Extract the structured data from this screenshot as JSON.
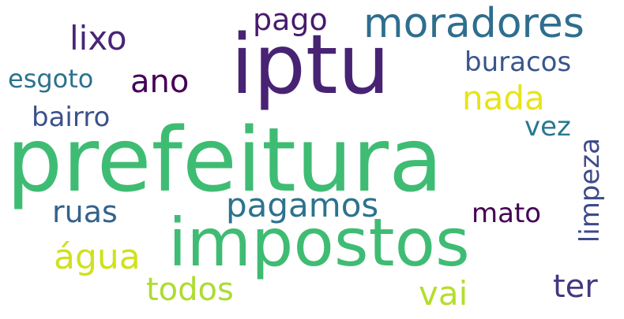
{
  "wordcloud": {
    "words": {
      "prefeitura": {
        "text": "prefeitura",
        "color": "#3fbc73"
      },
      "iptu": {
        "text": "iptu",
        "color": "#482374"
      },
      "impostos": {
        "text": "impostos",
        "color": "#3fbc73"
      },
      "moradores": {
        "text": "moradores",
        "color": "#2e6e8e"
      },
      "pago": {
        "text": "pago",
        "color": "#481b6d"
      },
      "lixo": {
        "text": "lixo",
        "color": "#482677"
      },
      "ano": {
        "text": "ano",
        "color": "#440154"
      },
      "esgoto": {
        "text": "esgoto",
        "color": "#2c728e"
      },
      "buracos": {
        "text": "buracos",
        "color": "#39558c"
      },
      "nada": {
        "text": "nada",
        "color": "#e7e419"
      },
      "bairro": {
        "text": "bairro",
        "color": "#3b528b"
      },
      "vez": {
        "text": "vez",
        "color": "#2a788e"
      },
      "limpeza": {
        "text": "limpeza",
        "color": "#3e4a89"
      },
      "pagamos": {
        "text": "pagamos",
        "color": "#2c728e"
      },
      "ruas": {
        "text": "ruas",
        "color": "#33638d"
      },
      "mato": {
        "text": "mato",
        "color": "#440154"
      },
      "agua": {
        "text": "água",
        "color": "#d0e11c"
      },
      "todos": {
        "text": "todos",
        "color": "#addc30"
      },
      "vai": {
        "text": "vai",
        "color": "#b5de2b"
      },
      "ter": {
        "text": "ter",
        "color": "#453781"
      }
    }
  }
}
